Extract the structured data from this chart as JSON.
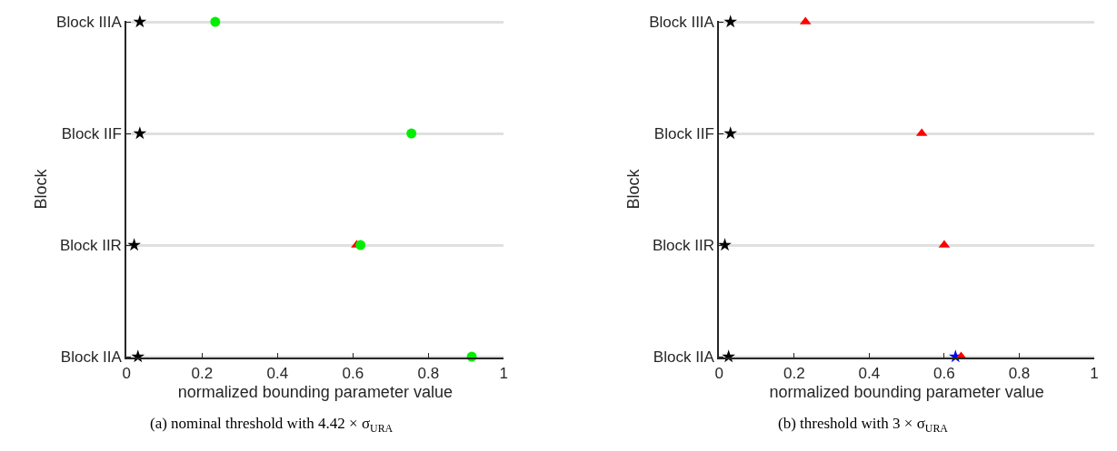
{
  "chart_data": [
    {
      "type": "scatter",
      "orientation": "horizontal",
      "categories": [
        "Block IIIA",
        "Block IIF",
        "Block IIR",
        "Block IIA"
      ],
      "xlabel": "normalized bounding parameter value",
      "ylabel": "Block",
      "xlim": [
        0,
        1
      ],
      "xticks": [
        0,
        0.2,
        0.4,
        0.6,
        0.8,
        1
      ],
      "grid": "y",
      "annotations": [
        "(a) nominal threshold with 4.42 × σ$_{URA}$"
      ],
      "series": [
        {
          "color": "#000000",
          "marker": "star",
          "values": [
            0.035,
            0.035,
            0.02,
            0.03
          ]
        },
        {
          "color": "#ff0000",
          "marker": "triangle",
          "values": [
            null,
            null,
            0.61,
            null
          ]
        },
        {
          "color": "#00ee00",
          "marker": "circle",
          "values": [
            0.235,
            0.755,
            0.62,
            0.915
          ]
        }
      ]
    },
    {
      "type": "scatter",
      "orientation": "horizontal",
      "categories": [
        "Block IIIA",
        "Block IIF",
        "Block IIR",
        "Block IIA"
      ],
      "xlabel": "normalized bounding parameter value",
      "ylabel": "Block",
      "xlim": [
        0,
        1
      ],
      "xticks": [
        0,
        0.2,
        0.4,
        0.6,
        0.8,
        1
      ],
      "grid": "y",
      "annotations": [
        "(b) threshold with 3 × σ$_{URA}$"
      ],
      "series": [
        {
          "color": "#000000",
          "marker": "star",
          "values": [
            0.03,
            0.03,
            0.015,
            0.025
          ]
        },
        {
          "color": "#0000ff",
          "marker": "star",
          "values": [
            null,
            null,
            null,
            0.63
          ]
        },
        {
          "color": "#ff0000",
          "marker": "triangle",
          "values": [
            0.23,
            0.54,
            0.6,
            0.645
          ]
        }
      ]
    }
  ]
}
